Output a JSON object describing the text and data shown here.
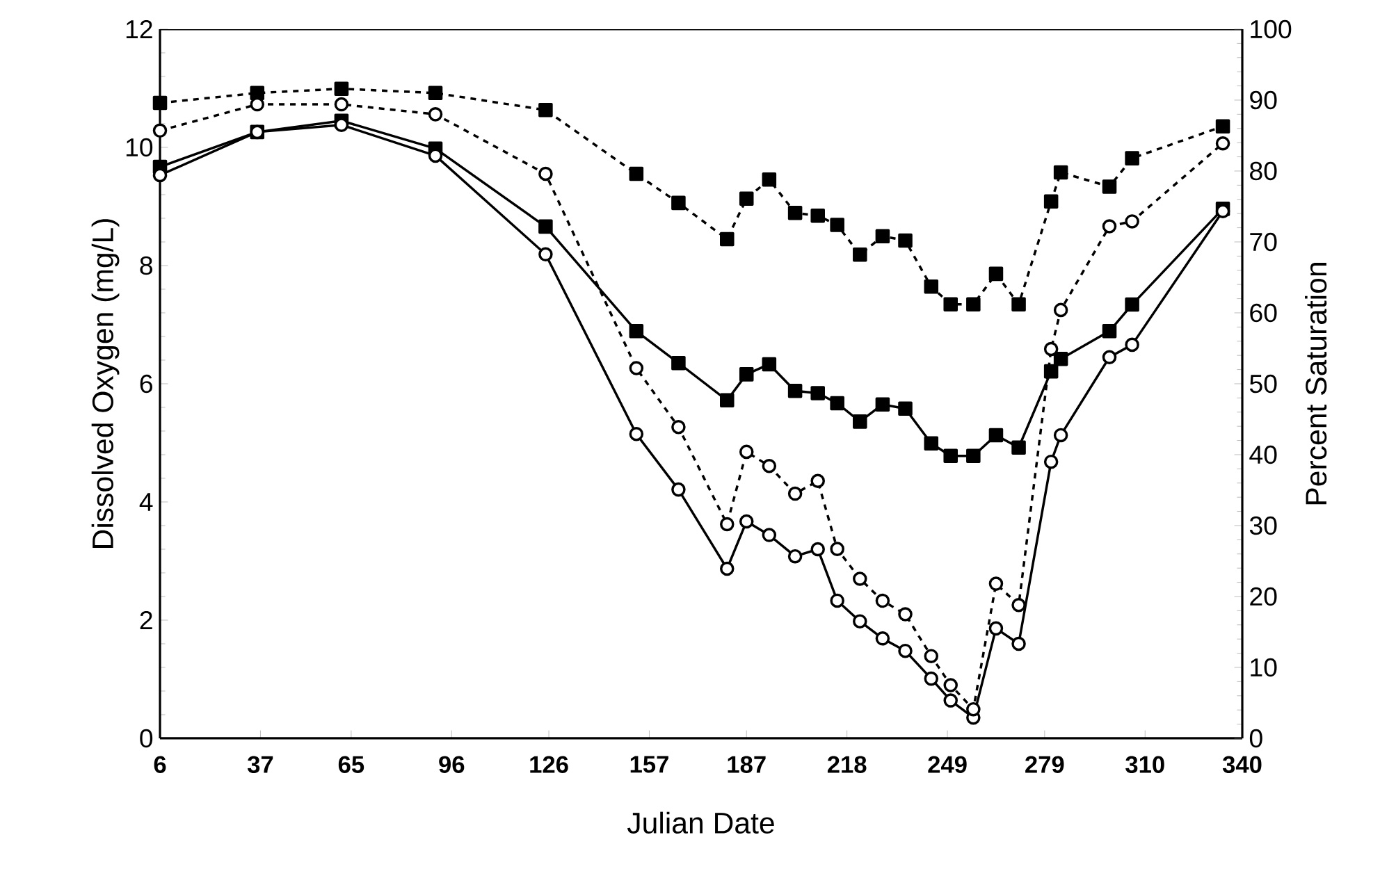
{
  "chart_data": {
    "type": "line",
    "xlabel": "Julian Date",
    "ylabel": "Dissolved Oxygen (mg/L)",
    "y2label": "Percent Saturation",
    "x": [
      6,
      36,
      62,
      91,
      125,
      153,
      166,
      181,
      187,
      194,
      202,
      209,
      215,
      222,
      229,
      236,
      244,
      250,
      257,
      264,
      271,
      281,
      284,
      299,
      306,
      334
    ],
    "series": [
      {
        "color": "#000000",
        "marker": "square",
        "line_style": "solid",
        "values": [
          9.67,
          10.26,
          10.45,
          9.98,
          8.66,
          6.89,
          6.35,
          5.72,
          6.16,
          6.33,
          5.88,
          5.84,
          5.67,
          5.36,
          5.65,
          5.58,
          4.99,
          4.78,
          4.78,
          5.13,
          4.92,
          6.21,
          6.42,
          6.89,
          7.34,
          8.96
        ]
      },
      {
        "color": "#000000",
        "marker": "circle",
        "line_style": "solid",
        "values": [
          9.53,
          10.26,
          10.38,
          9.86,
          8.19,
          5.15,
          4.21,
          2.87,
          3.67,
          3.44,
          3.08,
          3.2,
          2.33,
          1.98,
          1.69,
          1.48,
          1.01,
          0.64,
          0.35,
          1.86,
          1.6,
          4.68,
          5.13,
          6.45,
          6.66,
          8.92
        ]
      },
      {
        "color": "#000000",
        "marker": "square",
        "line_style": "dashed",
        "axis": "y2",
        "values": [
          89.6,
          91.0,
          91.6,
          91.0,
          88.6,
          79.6,
          75.5,
          70.4,
          76.1,
          78.8,
          74.1,
          73.7,
          72.4,
          68.2,
          70.8,
          70.2,
          63.7,
          61.2,
          61.2,
          65.5,
          61.2,
          75.7,
          79.8,
          77.8,
          81.8,
          86.3
        ]
      },
      {
        "color": "#000000",
        "marker": "circle",
        "line_style": "dashed",
        "axis": "y2",
        "values": [
          85.7,
          89.4,
          89.4,
          88.0,
          79.6,
          52.2,
          43.9,
          30.2,
          40.4,
          38.4,
          34.5,
          36.3,
          26.7,
          22.5,
          19.4,
          17.5,
          11.6,
          7.5,
          4.1,
          21.8,
          18.8,
          54.9,
          60.4,
          72.2,
          72.9,
          83.9
        ]
      }
    ],
    "xlim": [
      6,
      340
    ],
    "xticks": [
      6,
      37,
      65,
      96,
      126,
      157,
      187,
      218,
      249,
      279,
      310,
      340
    ],
    "ylim": [
      0,
      12
    ],
    "yticks": [
      0,
      2,
      4,
      6,
      8,
      10,
      12
    ],
    "y2lim": [
      0,
      100
    ],
    "y2ticks": [
      0,
      10,
      20,
      30,
      40,
      50,
      60,
      70,
      80,
      90,
      100
    ],
    "grid": false,
    "legend": false
  }
}
